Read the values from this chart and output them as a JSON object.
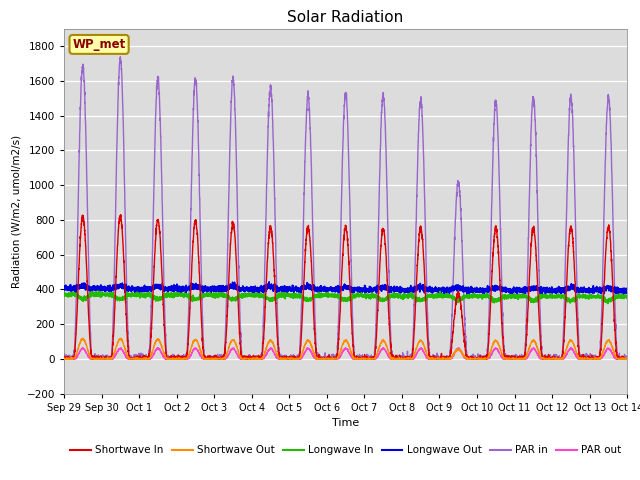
{
  "title": "Solar Radiation",
  "ylabel": "Radiation (W/m2, umol/m2/s)",
  "xlabel": "Time",
  "ylim": [
    -200,
    1900
  ],
  "yticks": [
    -200,
    0,
    200,
    400,
    600,
    800,
    1000,
    1200,
    1400,
    1600,
    1800
  ],
  "background_color": "#dcdcdc",
  "station_label": "WP_met",
  "x_tick_labels": [
    "Sep 29",
    "Sep 30",
    "Oct 1",
    "Oct 2",
    "Oct 3",
    "Oct 4",
    "Oct 5",
    "Oct 6",
    "Oct 7",
    "Oct 8",
    "Oct 9",
    "Oct 10",
    "Oct 11",
    "Oct 12",
    "Oct 13",
    "Oct 14"
  ],
  "series": {
    "Shortwave In": {
      "color": "#dd0000",
      "lw": 1.0
    },
    "Shortwave Out": {
      "color": "#ff8c00",
      "lw": 1.0
    },
    "Longwave In": {
      "color": "#22bb00",
      "lw": 1.2
    },
    "Longwave Out": {
      "color": "#0000dd",
      "lw": 1.2
    },
    "PAR in": {
      "color": "#9966cc",
      "lw": 1.0
    },
    "PAR out": {
      "color": "#ff44cc",
      "lw": 1.0
    }
  },
  "n_days": 15,
  "figsize": [
    6.4,
    4.8
  ],
  "dpi": 100
}
